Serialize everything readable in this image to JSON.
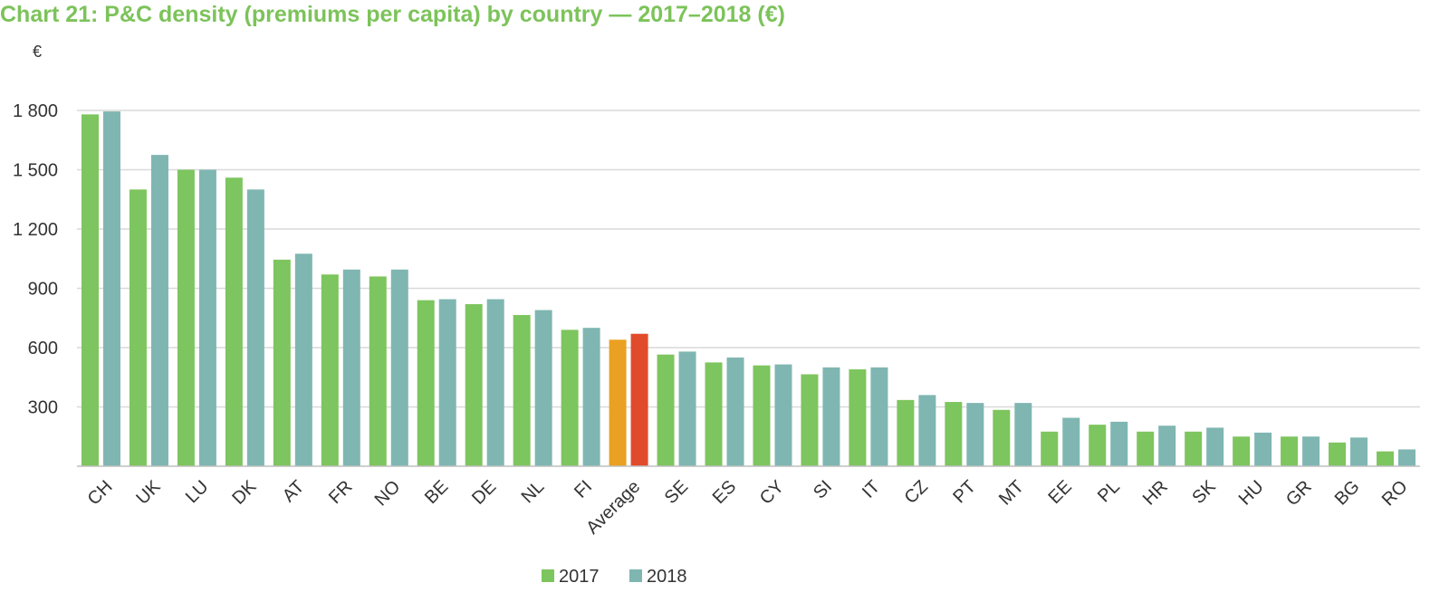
{
  "chart_data": {
    "type": "bar",
    "title": "Chart 21: P&C density (premiums per capita) by country — 2017–2018 (€)",
    "ylabel": "€",
    "xlabel": "",
    "ylim": [
      0,
      1800
    ],
    "yticks": [
      300,
      600,
      900,
      1200,
      1500,
      1800
    ],
    "ytick_labels": [
      "300",
      "600",
      "900",
      "1 200",
      "1 500",
      "1 800"
    ],
    "grid": true,
    "legend_position": "bottom-center",
    "categories": [
      "CH",
      "UK",
      "LU",
      "DK",
      "AT",
      "FR",
      "NO",
      "BE",
      "DE",
      "NL",
      "FI",
      "Average",
      "SE",
      "ES",
      "CY",
      "SI",
      "IT",
      "CZ",
      "PT",
      "MT",
      "EE",
      "PL",
      "HR",
      "SK",
      "HU",
      "GR",
      "BG",
      "RO"
    ],
    "series": [
      {
        "name": "2017",
        "color": "#7dc55e",
        "values": [
          1780,
          1400,
          1500,
          1460,
          1045,
          970,
          960,
          840,
          820,
          765,
          690,
          640,
          565,
          525,
          510,
          465,
          490,
          335,
          325,
          285,
          175,
          210,
          175,
          175,
          150,
          150,
          120,
          75
        ]
      },
      {
        "name": "2018",
        "color": "#7fb6b1",
        "values": [
          1795,
          1575,
          1500,
          1400,
          1075,
          995,
          995,
          845,
          845,
          790,
          700,
          670,
          580,
          550,
          515,
          500,
          500,
          360,
          320,
          320,
          245,
          225,
          205,
          195,
          170,
          150,
          145,
          85
        ]
      }
    ],
    "highlight": {
      "category": "Average",
      "colors": [
        "#eaa022",
        "#e24a2c"
      ]
    },
    "axis_color": "#bfbfbf",
    "grid_color": "#d9d9d9"
  }
}
